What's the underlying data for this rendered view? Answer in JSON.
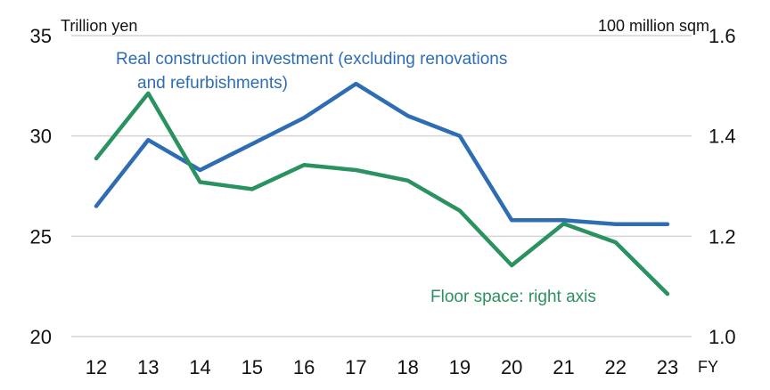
{
  "chart_data": {
    "type": "line",
    "x_axis": {
      "categories": [
        "12",
        "13",
        "14",
        "15",
        "16",
        "17",
        "18",
        "19",
        "20",
        "21",
        "22",
        "23"
      ],
      "label": "FY"
    },
    "y_axis_left": {
      "label": "Trillion yen",
      "range": [
        20,
        35
      ],
      "ticks": [
        "20",
        "25",
        "30",
        "35"
      ]
    },
    "y_axis_right": {
      "label": "100 million sqm",
      "range": [
        1.0,
        1.6
      ],
      "ticks": [
        "1.0",
        "1.2",
        "1.4",
        "1.6"
      ]
    },
    "grid": "horizontal",
    "series": [
      {
        "name": "Real  construction investment (excluding renovations and refurbishments)",
        "label_lines": [
          "Real  construction investment (excluding renovations",
          "and refurbishments)"
        ],
        "axis": "left",
        "color": "#2E6DB4",
        "values": [
          26.5,
          29.8,
          28.3,
          29.6,
          30.9,
          32.6,
          31.0,
          30.0,
          25.8,
          25.8,
          25.6,
          25.6
        ]
      },
      {
        "name": "Floor space: right axis",
        "label_lines": [
          "Floor space: right axis"
        ],
        "axis": "right",
        "color": "#2A9160",
        "values": [
          1.355,
          1.485,
          1.308,
          1.294,
          1.342,
          1.332,
          1.311,
          1.251,
          1.142,
          1.225,
          1.188,
          1.085
        ]
      }
    ]
  }
}
